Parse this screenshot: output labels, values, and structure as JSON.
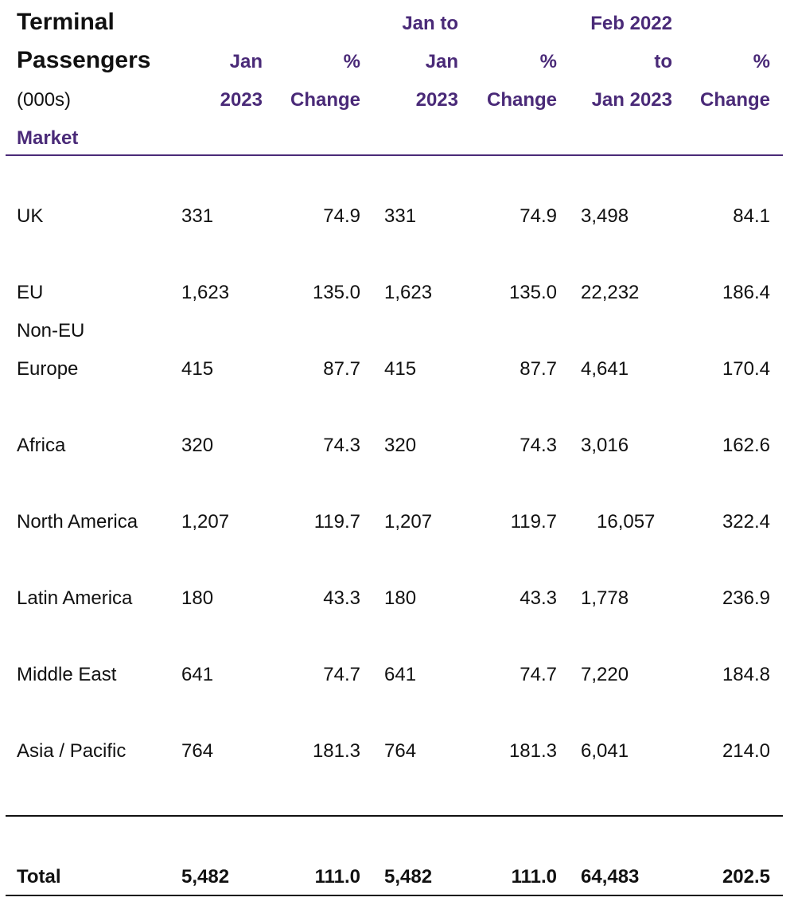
{
  "header": {
    "title_line1": "Terminal",
    "title_line2": "Passengers",
    "units": "(000s)",
    "market_label": "Market",
    "col1": [
      "Jan",
      "2023"
    ],
    "col2": [
      "%",
      "Change"
    ],
    "col3": [
      "Jan to",
      "Jan",
      "2023"
    ],
    "col4": [
      "%",
      "Change"
    ],
    "col5": [
      "Feb 2022",
      "to",
      "Jan 2023"
    ],
    "col6": [
      "%",
      "Change"
    ]
  },
  "rows": [
    {
      "market": "UK",
      "v": [
        "331",
        "74.9",
        "331",
        "74.9",
        "3,498",
        "84.1"
      ]
    },
    {
      "market": "EU",
      "v": [
        "1,623",
        "135.0",
        "1,623",
        "135.0",
        "22,232",
        "186.4"
      ]
    },
    {
      "market_line1": "Non-EU",
      "market": "Europe",
      "v": [
        "415",
        "87.7",
        "415",
        "87.7",
        "4,641",
        "170.4"
      ]
    },
    {
      "market": "Africa",
      "v": [
        "320",
        "74.3",
        "320",
        "74.3",
        "3,016",
        "162.6"
      ]
    },
    {
      "market": "North America",
      "v": [
        "1,207",
        "119.7",
        "1,207",
        "119.7",
        "16,057",
        "322.4"
      ]
    },
    {
      "market": "Latin America",
      "v": [
        "180",
        "43.3",
        "180",
        "43.3",
        "1,778",
        "236.9"
      ]
    },
    {
      "market": "Middle East",
      "v": [
        "641",
        "74.7",
        "641",
        "74.7",
        "7,220",
        "184.8"
      ]
    },
    {
      "market": "Asia / Pacific",
      "v": [
        "764",
        "181.3",
        "764",
        "181.3",
        "6,041",
        "214.0"
      ]
    }
  ],
  "total": {
    "market": "Total",
    "v": [
      "5,482",
      "111.0",
      "5,482",
      "111.0",
      "64,483",
      "202.5"
    ]
  },
  "colors": {
    "accent": "#4a2a78",
    "text": "#111111"
  }
}
